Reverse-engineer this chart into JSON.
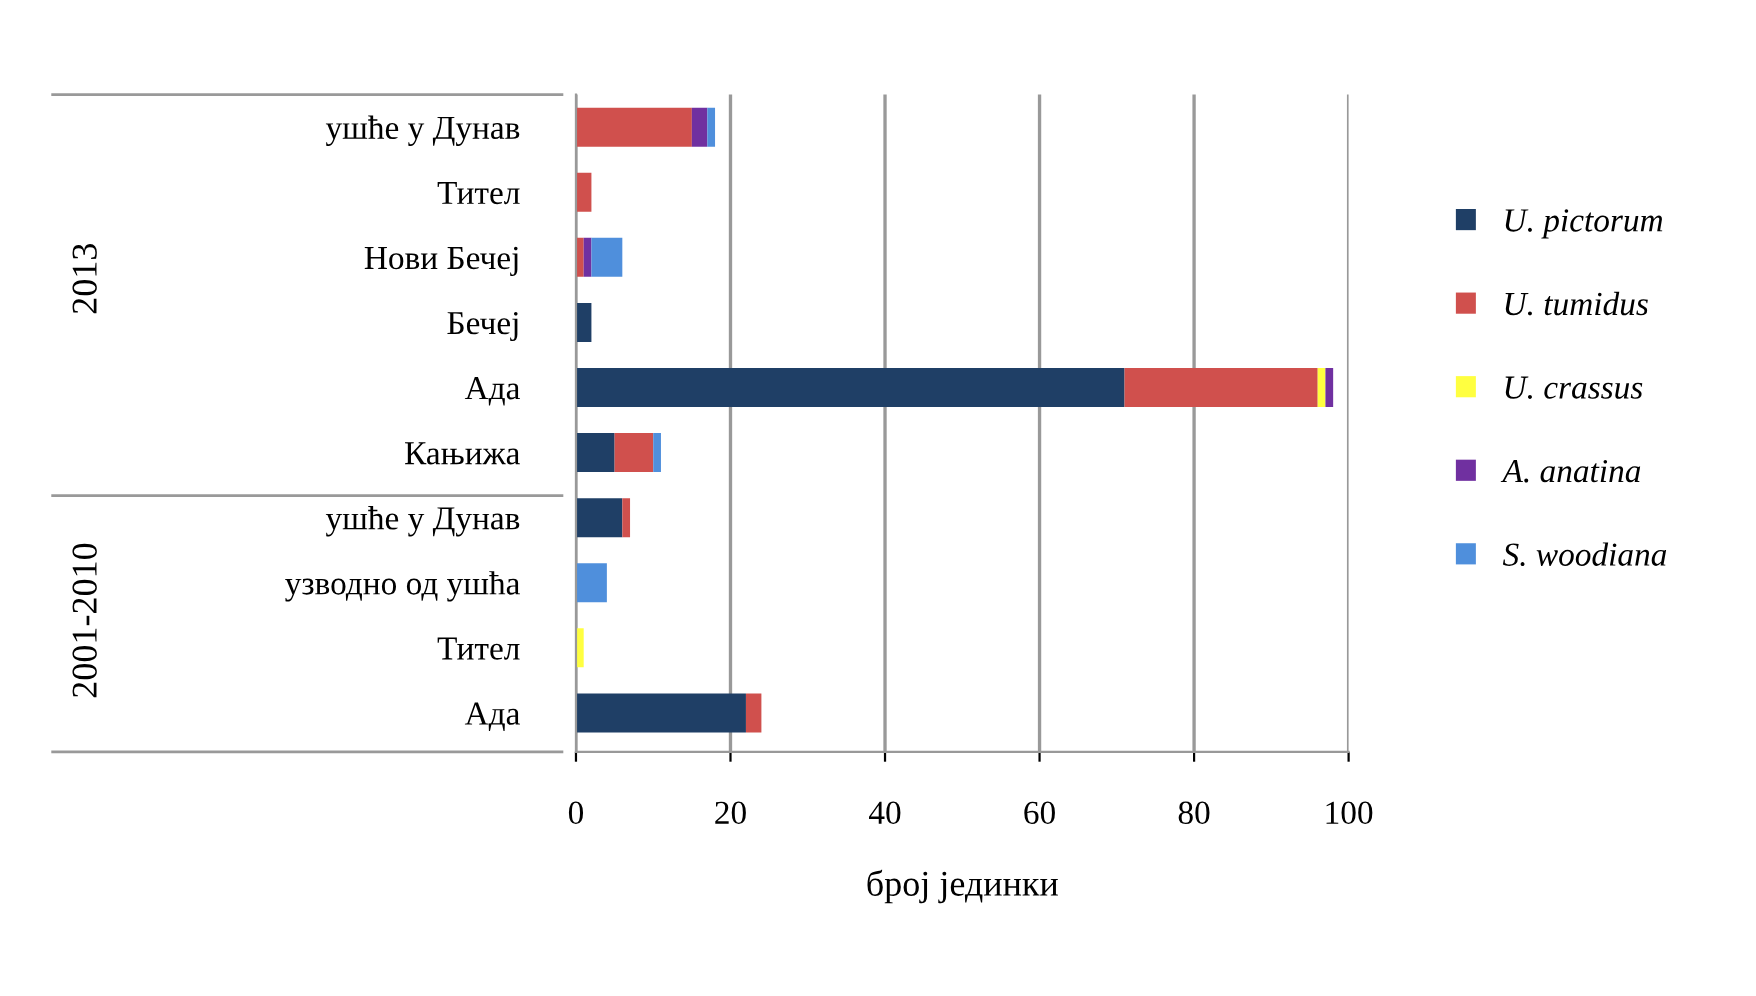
{
  "chart_data": {
    "type": "bar",
    "orientation": "horizontal",
    "stacked": true,
    "categories": [
      "ушће у Дунав",
      "Тител",
      "Нови Бечеј",
      "Бечеј",
      "Ада",
      "Кањижа",
      "ушће у Дунав",
      "узводно од ушћа",
      "Тител",
      "Ада"
    ],
    "series": [
      {
        "name": "U. pictorum",
        "color": "#1f3f66",
        "values": [
          0,
          0,
          0,
          2,
          71,
          5,
          6,
          0,
          0,
          22
        ]
      },
      {
        "name": "U. tumidus",
        "color": "#d0504d",
        "values": [
          15,
          2,
          1,
          0,
          25,
          5,
          1,
          0,
          0,
          2
        ]
      },
      {
        "name": "U. crassus",
        "color": "#ffff40",
        "values": [
          0,
          0,
          0,
          0,
          1,
          0,
          0,
          0,
          1,
          0
        ]
      },
      {
        "name": "A. anatina",
        "color": "#7030a0",
        "values": [
          2,
          0,
          1,
          0,
          1,
          0,
          0,
          0,
          0,
          0
        ]
      },
      {
        "name": "S. woodiana",
        "color": "#4f8fdc",
        "values": [
          1,
          0,
          4,
          0,
          0,
          1,
          0,
          4,
          0,
          0
        ]
      }
    ],
    "xlim": [
      0,
      100
    ],
    "xticks": [
      0,
      20,
      40,
      60,
      80,
      100
    ],
    "xlabel": "број јединки",
    "grid": "x",
    "legend": "right",
    "annotations": [
      "2013",
      "2001-2010"
    ]
  }
}
